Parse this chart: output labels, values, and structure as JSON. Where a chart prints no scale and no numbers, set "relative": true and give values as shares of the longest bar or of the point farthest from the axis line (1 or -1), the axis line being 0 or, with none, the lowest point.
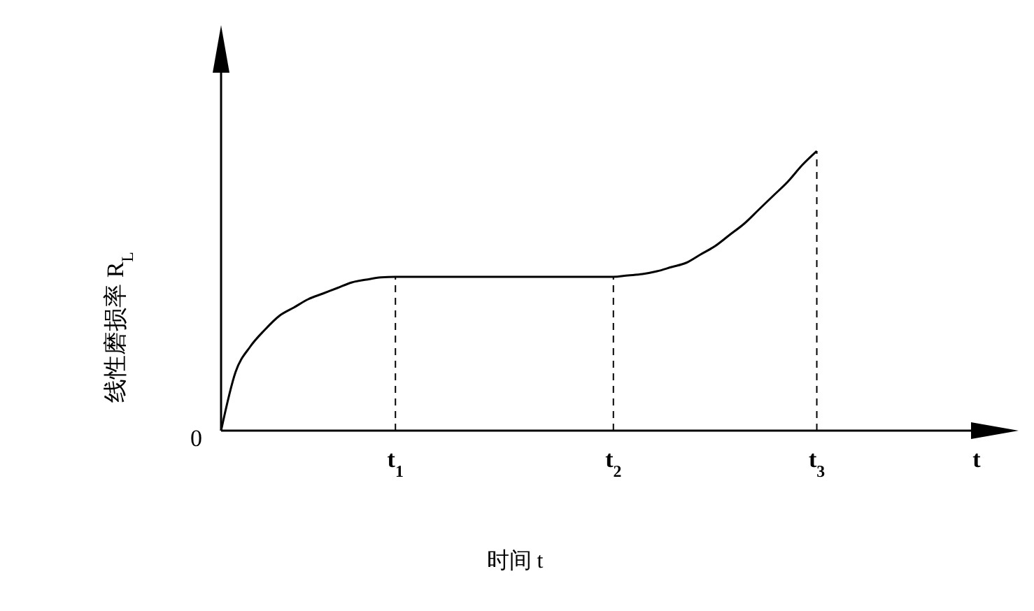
{
  "chart_data": {
    "type": "line",
    "relative": true,
    "ylabel": "线性磨损率 R$_{L}$",
    "xlabel": "时间 t",
    "marker": "none",
    "line_style": "solid",
    "categories": [
      null,
      null,
      null,
      null,
      null,
      null,
      null,
      null,
      null,
      null,
      null,
      null,
      "t$_{1}$",
      null,
      null,
      null,
      null,
      null,
      null,
      null,
      null,
      null,
      null,
      null,
      null,
      null,
      null,
      "t$_{2}$",
      null,
      null,
      null,
      null,
      null,
      null,
      null,
      null,
      null,
      null,
      null,
      null,
      null,
      "t$_{3}$",
      null,
      null,
      null,
      null,
      null,
      null,
      null,
      null,
      null,
      null,
      "t"
    ],
    "series": [
      {
        "color": "#000000",
        "values": [
          0,
          0.21,
          0.3,
          0.36,
          0.41,
          0.44,
          0.47,
          0.49,
          0.51,
          0.53,
          0.54,
          0.548,
          0.55,
          0.55,
          0.55,
          0.55,
          0.55,
          0.55,
          0.55,
          0.55,
          0.55,
          0.55,
          0.55,
          0.55,
          0.55,
          0.55,
          0.55,
          0.55,
          0.555,
          0.56,
          0.57,
          0.585,
          0.6,
          0.63,
          0.66,
          0.7,
          0.74,
          0.79,
          0.84,
          0.89,
          0.95,
          1.0,
          null,
          null,
          null,
          null,
          null,
          null,
          null,
          null,
          null,
          null,
          null
        ]
      }
    ],
    "ref_lines": [
      {
        "axis": "x",
        "value": "t$_{1}$",
        "line_style": "dashed"
      },
      {
        "axis": "x",
        "value": "t$_{2}$",
        "line_style": "dashed"
      },
      {
        "axis": "x",
        "value": "t$_{3}$",
        "line_style": "dashed"
      }
    ],
    "annotations": [
      "0"
    ]
  }
}
